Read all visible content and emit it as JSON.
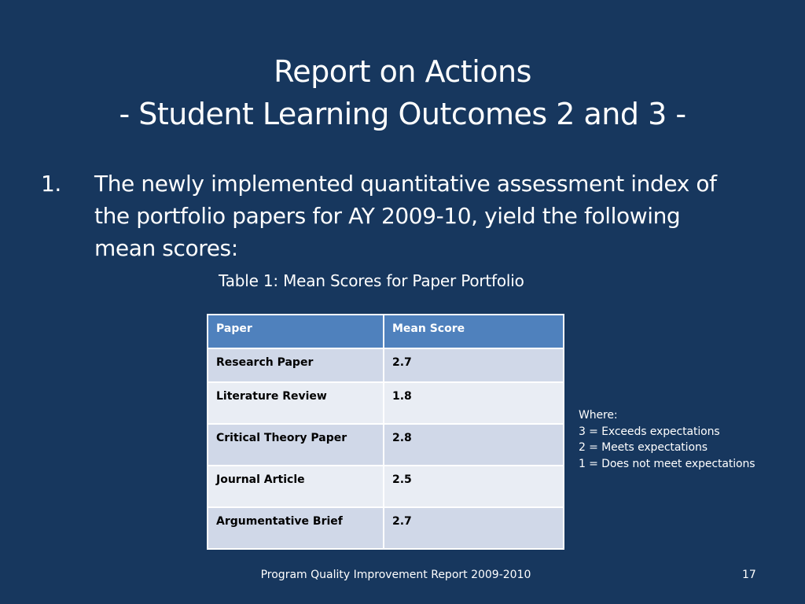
{
  "slide": {
    "title_line1": "Report on Actions",
    "title_line2": "- Student Learning Outcomes 2 and 3 -",
    "item_number": "1.",
    "item_text": "The newly implemented quantitative assessment index of the portfolio papers for AY 2009-10, yield the following mean scores:",
    "table_caption": "Table 1: Mean Scores for Paper Portfolio"
  },
  "table": {
    "headers": [
      "Paper",
      "Mean Score"
    ],
    "rows": [
      {
        "paper": "Research Paper",
        "score": "2.7"
      },
      {
        "paper": "Literature Review",
        "score": "1.8"
      },
      {
        "paper": "Critical Theory Paper",
        "score": "2.8"
      },
      {
        "paper": "Journal Article",
        "score": "2.5"
      },
      {
        "paper": "Argumentative Brief",
        "score": "2.7"
      }
    ]
  },
  "legend": {
    "heading": "Where:",
    "lines": [
      "3 = Exceeds expectations",
      "2 = Meets expectations",
      "1 = Does not meet expectations"
    ]
  },
  "footer": {
    "text": "Program Quality Improvement Report 2009-2010",
    "page_number": "17"
  },
  "colors": {
    "background": "#17375e",
    "table_header": "#4f81bd",
    "table_row_dark": "#d0d8e8",
    "table_row_light": "#e9edf4"
  }
}
